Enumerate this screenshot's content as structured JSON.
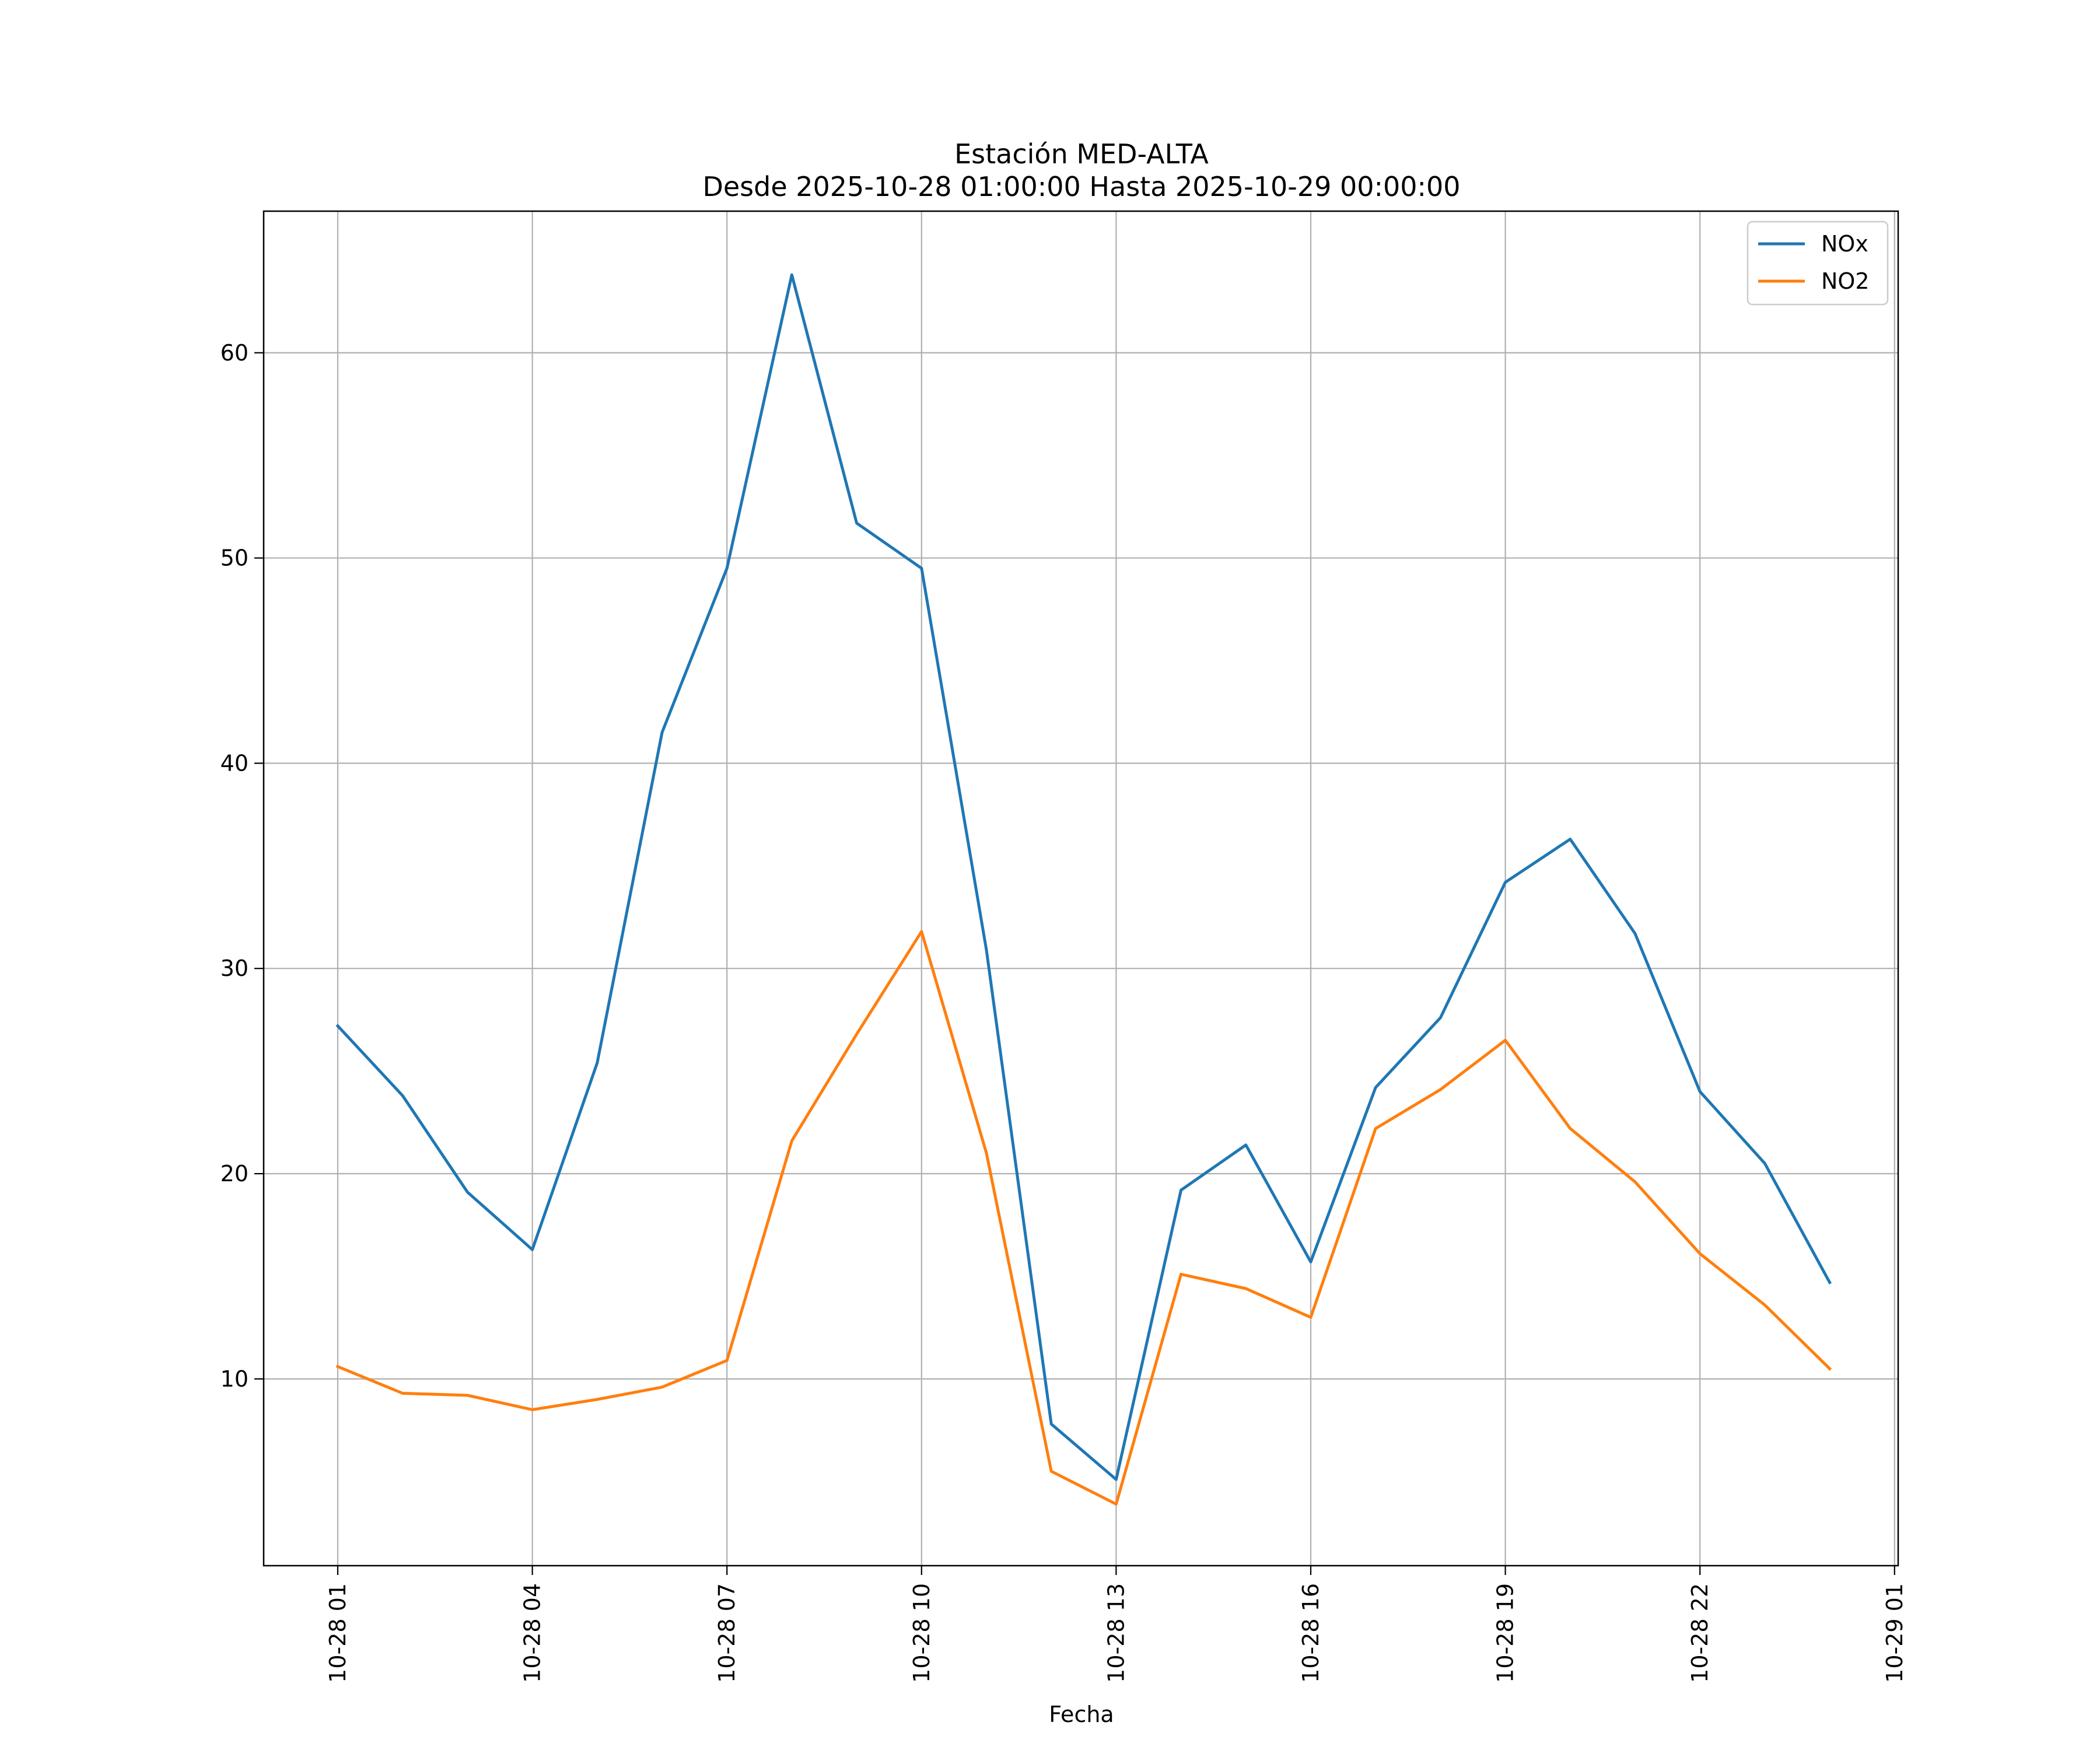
{
  "chart_data": {
    "type": "line",
    "title": "Estación MED-ALTA",
    "subtitle": "Desde 2025-10-28 01:00:00 Hasta 2025-10-29 00:00:00",
    "xlabel": "Fecha",
    "ylabel": "",
    "x": [
      "2025-10-28 01:00",
      "2025-10-28 02:00",
      "2025-10-28 03:00",
      "2025-10-28 04:00",
      "2025-10-28 05:00",
      "2025-10-28 06:00",
      "2025-10-28 07:00",
      "2025-10-28 08:00",
      "2025-10-28 09:00",
      "2025-10-28 10:00",
      "2025-10-28 11:00",
      "2025-10-28 12:00",
      "2025-10-28 13:00",
      "2025-10-28 14:00",
      "2025-10-28 15:00",
      "2025-10-28 16:00",
      "2025-10-28 17:00",
      "2025-10-28 18:00",
      "2025-10-28 19:00",
      "2025-10-28 20:00",
      "2025-10-28 21:00",
      "2025-10-28 22:00",
      "2025-10-28 23:00",
      "2025-10-29 00:00"
    ],
    "series": [
      {
        "name": "NOx",
        "color": "#1f77b4",
        "values": [
          27.2,
          23.8,
          19.1,
          16.3,
          25.4,
          41.5,
          49.5,
          63.8,
          51.7,
          49.5,
          30.9,
          7.8,
          5.1,
          19.2,
          21.4,
          15.7,
          24.2,
          27.6,
          34.2,
          36.3,
          31.7,
          24.0,
          20.5,
          14.7
        ]
      },
      {
        "name": "NO2",
        "color": "#ff7f0e",
        "values": [
          10.6,
          9.3,
          9.2,
          8.5,
          9.0,
          9.6,
          10.9,
          21.6,
          26.8,
          31.8,
          21.0,
          5.5,
          3.9,
          15.1,
          14.4,
          13.0,
          22.2,
          24.1,
          26.5,
          22.2,
          19.6,
          16.1,
          13.6,
          10.5
        ]
      }
    ],
    "xlim": [
      "2025-10-28 00:00",
      "2025-10-29 01:30"
    ],
    "x_ticks": [
      "2025-10-28 01:00",
      "2025-10-28 04:00",
      "2025-10-28 07:00",
      "2025-10-28 10:00",
      "2025-10-28 13:00",
      "2025-10-28 16:00",
      "2025-10-28 19:00",
      "2025-10-28 22:00",
      "2025-10-29 01:00"
    ],
    "x_tick_labels": [
      "10-28 01",
      "10-28 04",
      "10-28 07",
      "10-28 10",
      "10-28 13",
      "10-28 16",
      "10-28 19",
      "10-28 22",
      "10-29 01"
    ],
    "ylim": [
      0.9,
      66.9
    ],
    "y_ticks": [
      10,
      20,
      30,
      40,
      50,
      60
    ],
    "y_tick_labels": [
      "10",
      "20",
      "30",
      "40",
      "50",
      "60"
    ],
    "grid": true,
    "legend_position": "top-right"
  }
}
